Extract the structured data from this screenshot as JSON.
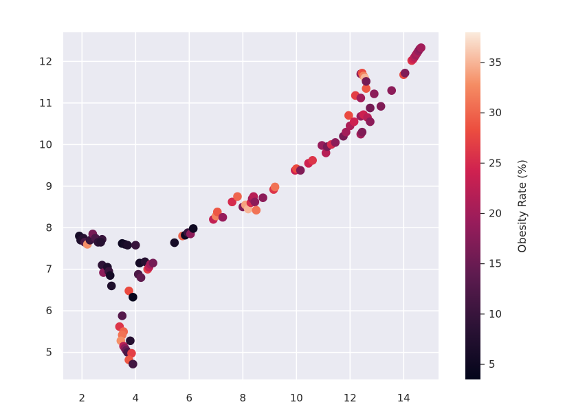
{
  "chart_data": {
    "type": "scatter",
    "title": "",
    "xlabel": "",
    "ylabel": "",
    "xlim": [
      1.3,
      15.3
    ],
    "ylim": [
      4.35,
      12.7
    ],
    "xticks": [
      "2",
      "4",
      "6",
      "8",
      "10",
      "12",
      "14"
    ],
    "yticks": [
      "5",
      "6",
      "7",
      "8",
      "9",
      "10",
      "11",
      "12"
    ],
    "grid": true,
    "style": "seaborn darkgrid",
    "colormap": "rocket",
    "colorbar": {
      "label": "Obesity Rate (%)",
      "range": [
        3.5,
        38
      ],
      "ticks": [
        "5",
        "10",
        "15",
        "20",
        "25",
        "30",
        "35"
      ]
    },
    "points": [
      {
        "x": 1.9,
        "y": 7.8,
        "c": 6
      },
      {
        "x": 2.0,
        "y": 7.72,
        "c": 5
      },
      {
        "x": 1.95,
        "y": 7.7,
        "c": 7
      },
      {
        "x": 2.05,
        "y": 7.75,
        "c": 8
      },
      {
        "x": 2.1,
        "y": 7.65,
        "c": 12
      },
      {
        "x": 2.2,
        "y": 7.6,
        "c": 33
      },
      {
        "x": 2.3,
        "y": 7.7,
        "c": 10
      },
      {
        "x": 2.4,
        "y": 7.85,
        "c": 16
      },
      {
        "x": 2.5,
        "y": 7.75,
        "c": 12
      },
      {
        "x": 2.6,
        "y": 7.65,
        "c": 9
      },
      {
        "x": 2.75,
        "y": 7.72,
        "c": 10
      },
      {
        "x": 2.7,
        "y": 7.65,
        "c": 8
      },
      {
        "x": 2.75,
        "y": 7.1,
        "c": 9
      },
      {
        "x": 2.8,
        "y": 6.92,
        "c": 18
      },
      {
        "x": 2.95,
        "y": 7.05,
        "c": 7
      },
      {
        "x": 3.0,
        "y": 6.95,
        "c": 10
      },
      {
        "x": 3.05,
        "y": 6.85,
        "c": 6
      },
      {
        "x": 3.1,
        "y": 6.6,
        "c": 7
      },
      {
        "x": 3.5,
        "y": 7.62,
        "c": 5
      },
      {
        "x": 3.6,
        "y": 7.6,
        "c": 6
      },
      {
        "x": 3.7,
        "y": 7.58,
        "c": 7
      },
      {
        "x": 3.75,
        "y": 6.48,
        "c": 28
      },
      {
        "x": 3.9,
        "y": 6.33,
        "c": 4
      },
      {
        "x": 4.0,
        "y": 7.58,
        "c": 10
      },
      {
        "x": 4.1,
        "y": 6.88,
        "c": 12
      },
      {
        "x": 4.2,
        "y": 6.8,
        "c": 14
      },
      {
        "x": 4.15,
        "y": 7.15,
        "c": 6
      },
      {
        "x": 4.35,
        "y": 7.18,
        "c": 8
      },
      {
        "x": 4.45,
        "y": 7.0,
        "c": 27
      },
      {
        "x": 4.5,
        "y": 7.05,
        "c": 23
      },
      {
        "x": 4.55,
        "y": 7.12,
        "c": 20
      },
      {
        "x": 4.65,
        "y": 7.15,
        "c": 16
      },
      {
        "x": 3.5,
        "y": 5.88,
        "c": 13
      },
      {
        "x": 3.4,
        "y": 5.62,
        "c": 26
      },
      {
        "x": 3.55,
        "y": 5.5,
        "c": 30
      },
      {
        "x": 3.5,
        "y": 5.42,
        "c": 31
      },
      {
        "x": 3.45,
        "y": 5.28,
        "c": 33
      },
      {
        "x": 3.55,
        "y": 5.15,
        "c": 22
      },
      {
        "x": 3.6,
        "y": 5.1,
        "c": 18
      },
      {
        "x": 3.65,
        "y": 5.05,
        "c": 15
      },
      {
        "x": 3.7,
        "y": 5.0,
        "c": 12
      },
      {
        "x": 3.8,
        "y": 5.28,
        "c": 8
      },
      {
        "x": 3.85,
        "y": 4.98,
        "c": 27
      },
      {
        "x": 3.75,
        "y": 4.82,
        "c": 29
      },
      {
        "x": 3.9,
        "y": 4.72,
        "c": 11
      },
      {
        "x": 5.45,
        "y": 7.64,
        "c": 6
      },
      {
        "x": 5.75,
        "y": 7.8,
        "c": 30
      },
      {
        "x": 5.85,
        "y": 7.82,
        "c": 5
      },
      {
        "x": 5.95,
        "y": 7.88,
        "c": 10
      },
      {
        "x": 6.05,
        "y": 7.85,
        "c": 18
      },
      {
        "x": 6.15,
        "y": 7.98,
        "c": 5
      },
      {
        "x": 6.9,
        "y": 8.2,
        "c": 23
      },
      {
        "x": 7.0,
        "y": 8.28,
        "c": 32
      },
      {
        "x": 7.05,
        "y": 8.38,
        "c": 29
      },
      {
        "x": 7.25,
        "y": 8.25,
        "c": 19
      },
      {
        "x": 7.6,
        "y": 8.62,
        "c": 25
      },
      {
        "x": 7.8,
        "y": 8.75,
        "c": 30
      },
      {
        "x": 8.0,
        "y": 8.5,
        "c": 17
      },
      {
        "x": 8.1,
        "y": 8.55,
        "c": 34
      },
      {
        "x": 8.2,
        "y": 8.45,
        "c": 35
      },
      {
        "x": 8.3,
        "y": 8.6,
        "c": 25
      },
      {
        "x": 8.35,
        "y": 8.7,
        "c": 20
      },
      {
        "x": 8.4,
        "y": 8.75,
        "c": 22
      },
      {
        "x": 8.45,
        "y": 8.62,
        "c": 18
      },
      {
        "x": 8.5,
        "y": 8.42,
        "c": 31
      },
      {
        "x": 8.75,
        "y": 8.72,
        "c": 18
      },
      {
        "x": 9.15,
        "y": 8.92,
        "c": 26
      },
      {
        "x": 9.2,
        "y": 8.98,
        "c": 31
      },
      {
        "x": 9.95,
        "y": 9.38,
        "c": 24
      },
      {
        "x": 10.0,
        "y": 9.42,
        "c": 28
      },
      {
        "x": 10.15,
        "y": 9.38,
        "c": 17
      },
      {
        "x": 10.45,
        "y": 9.55,
        "c": 24
      },
      {
        "x": 10.6,
        "y": 9.62,
        "c": 26
      },
      {
        "x": 10.95,
        "y": 9.98,
        "c": 19
      },
      {
        "x": 11.1,
        "y": 9.8,
        "c": 22
      },
      {
        "x": 11.15,
        "y": 9.95,
        "c": 16
      },
      {
        "x": 11.3,
        "y": 10.0,
        "c": 25
      },
      {
        "x": 11.45,
        "y": 10.05,
        "c": 18
      },
      {
        "x": 11.75,
        "y": 10.2,
        "c": 16
      },
      {
        "x": 11.85,
        "y": 10.3,
        "c": 20
      },
      {
        "x": 11.95,
        "y": 10.7,
        "c": 28
      },
      {
        "x": 12.0,
        "y": 10.45,
        "c": 21
      },
      {
        "x": 12.15,
        "y": 10.55,
        "c": 24
      },
      {
        "x": 12.4,
        "y": 10.25,
        "c": 20
      },
      {
        "x": 12.45,
        "y": 10.3,
        "c": 17
      },
      {
        "x": 12.4,
        "y": 10.68,
        "c": 19
      },
      {
        "x": 12.5,
        "y": 10.72,
        "c": 24
      },
      {
        "x": 12.65,
        "y": 10.65,
        "c": 22
      },
      {
        "x": 12.75,
        "y": 10.55,
        "c": 18
      },
      {
        "x": 12.75,
        "y": 10.88,
        "c": 16
      },
      {
        "x": 12.2,
        "y": 11.18,
        "c": 27
      },
      {
        "x": 12.4,
        "y": 11.12,
        "c": 20
      },
      {
        "x": 12.6,
        "y": 11.35,
        "c": 29
      },
      {
        "x": 12.9,
        "y": 11.22,
        "c": 18
      },
      {
        "x": 13.15,
        "y": 10.92,
        "c": 17
      },
      {
        "x": 12.4,
        "y": 11.7,
        "c": 18
      },
      {
        "x": 12.45,
        "y": 11.72,
        "c": 28
      },
      {
        "x": 12.5,
        "y": 11.65,
        "c": 32
      },
      {
        "x": 12.55,
        "y": 11.6,
        "c": 35
      },
      {
        "x": 12.6,
        "y": 11.52,
        "c": 16
      },
      {
        "x": 13.55,
        "y": 11.3,
        "c": 18
      },
      {
        "x": 14.0,
        "y": 11.68,
        "c": 28
      },
      {
        "x": 14.05,
        "y": 11.72,
        "c": 17
      },
      {
        "x": 14.3,
        "y": 12.02,
        "c": 26
      },
      {
        "x": 14.35,
        "y": 12.05,
        "c": 24
      },
      {
        "x": 14.4,
        "y": 12.1,
        "c": 22
      },
      {
        "x": 14.45,
        "y": 12.15,
        "c": 20
      },
      {
        "x": 14.5,
        "y": 12.2,
        "c": 21
      },
      {
        "x": 14.55,
        "y": 12.25,
        "c": 19
      },
      {
        "x": 14.6,
        "y": 12.3,
        "c": 18
      },
      {
        "x": 14.65,
        "y": 12.33,
        "c": 20
      }
    ]
  }
}
